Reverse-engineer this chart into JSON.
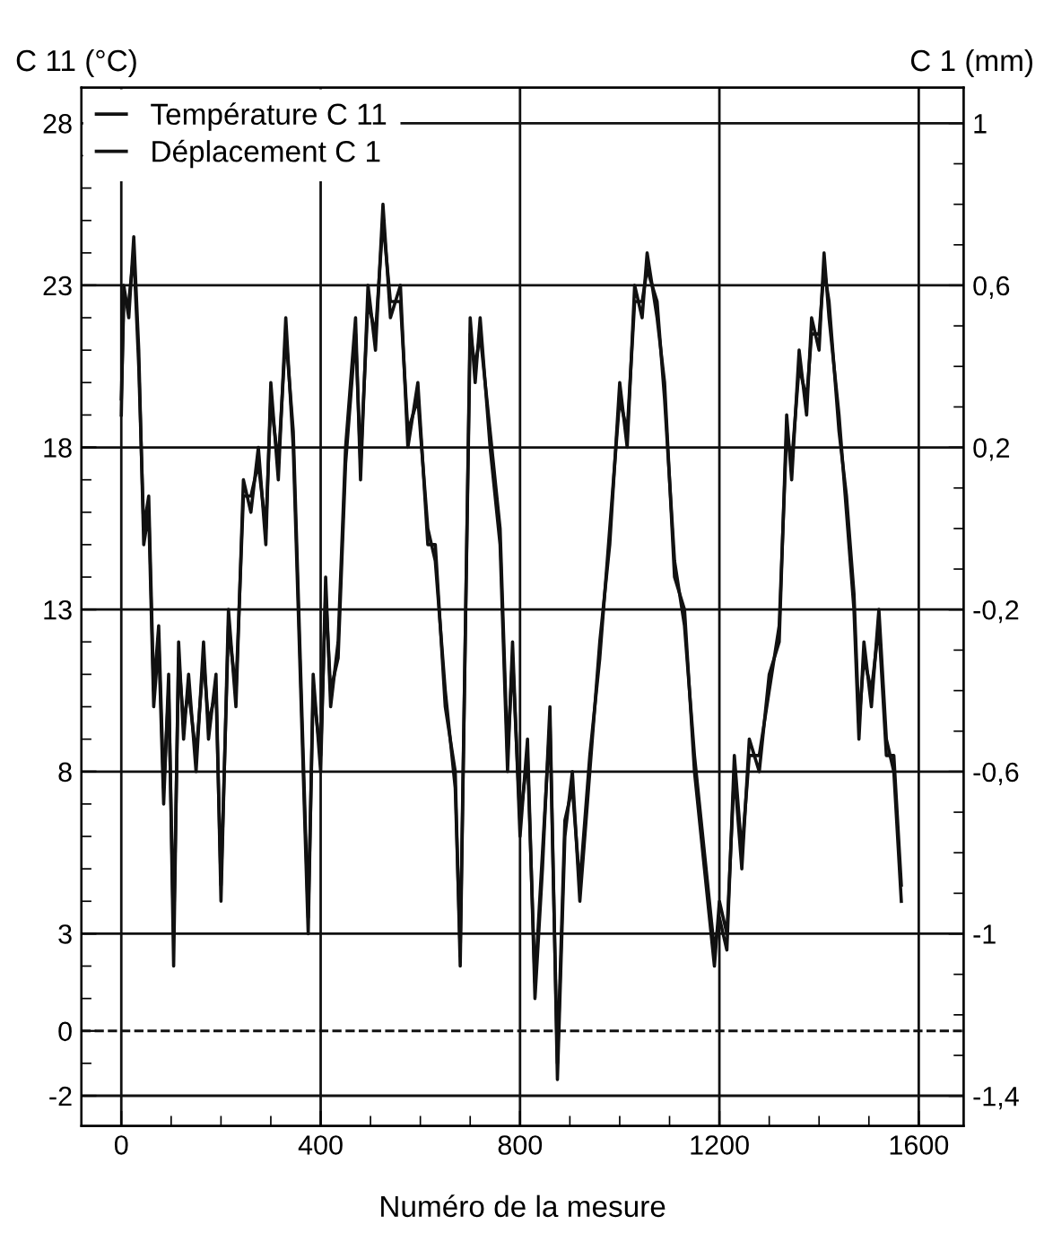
{
  "chart_data": {
    "type": "line",
    "xlabel": "Numéro de la mesure",
    "ylabel": "C 11 (°C)",
    "y2label": "C 1 (mm)",
    "x": [
      0,
      5,
      15,
      25,
      35,
      45,
      55,
      65,
      75,
      85,
      95,
      105,
      115,
      125,
      135,
      150,
      165,
      175,
      190,
      200,
      215,
      230,
      245,
      260,
      275,
      290,
      300,
      315,
      330,
      345,
      365,
      375,
      385,
      400,
      410,
      420,
      435,
      450,
      470,
      480,
      495,
      510,
      525,
      540,
      560,
      575,
      595,
      615,
      630,
      650,
      670,
      680,
      700,
      710,
      720,
      740,
      760,
      775,
      785,
      800,
      815,
      830,
      845,
      860,
      875,
      890,
      905,
      920,
      940,
      960,
      980,
      1000,
      1015,
      1030,
      1045,
      1055,
      1075,
      1090,
      1110,
      1130,
      1150,
      1170,
      1190,
      1200,
      1215,
      1230,
      1245,
      1260,
      1280,
      1300,
      1320,
      1335,
      1345,
      1360,
      1375,
      1385,
      1400,
      1410,
      1420,
      1440,
      1455,
      1470,
      1480,
      1490,
      1505,
      1520,
      1535,
      1550,
      1565
    ],
    "series": [
      {
        "name": "Température C 11",
        "color": "#111111",
        "values": [
          19,
          23,
          22,
          24.5,
          21,
          15,
          16,
          10,
          12,
          7,
          11,
          2,
          12,
          9,
          11,
          8,
          12,
          9,
          11,
          4,
          13,
          10,
          17,
          16,
          18,
          15,
          20,
          17,
          22,
          18,
          8,
          3,
          11,
          8,
          14,
          10,
          12,
          18,
          22,
          17,
          23,
          21,
          25.5,
          22,
          23,
          18,
          20,
          15,
          15,
          10,
          8,
          2,
          22,
          20,
          22,
          18,
          15,
          8,
          12,
          6,
          9,
          1,
          5,
          10,
          -1.5,
          6,
          8,
          4,
          8,
          12,
          15,
          20,
          18,
          23,
          22,
          24,
          22,
          20,
          14,
          13,
          8,
          5,
          2,
          4,
          3,
          8,
          5,
          9,
          8,
          11,
          12,
          19,
          17,
          21,
          19,
          22,
          21,
          24,
          22,
          19,
          16,
          13,
          9,
          12,
          10,
          13,
          9,
          8,
          4
        ]
      },
      {
        "name": "Déplacement C 1",
        "color": "#111111",
        "axis": "y2",
        "values": [
          0.32,
          0.56,
          0.56,
          0.68,
          0.4,
          0.0,
          0.08,
          -0.4,
          -0.24,
          -0.64,
          -0.4,
          -1.0,
          -0.32,
          -0.48,
          -0.4,
          -0.56,
          -0.32,
          -0.48,
          -0.4,
          -0.88,
          -0.24,
          -0.4,
          0.08,
          0.08,
          0.16,
          0.0,
          0.32,
          0.16,
          0.48,
          0.24,
          -0.56,
          -0.96,
          -0.4,
          -0.56,
          -0.16,
          -0.4,
          -0.32,
          0.16,
          0.48,
          0.16,
          0.56,
          0.48,
          0.76,
          0.56,
          0.56,
          0.24,
          0.32,
          0.0,
          -0.08,
          -0.4,
          -0.64,
          -1.04,
          0.48,
          0.4,
          0.48,
          0.24,
          0.0,
          -0.56,
          -0.32,
          -0.72,
          -0.56,
          -1.12,
          -0.8,
          -0.48,
          -1.32,
          -0.72,
          -0.64,
          -0.88,
          -0.56,
          -0.32,
          0.0,
          0.32,
          0.24,
          0.56,
          0.56,
          0.64,
          0.56,
          0.32,
          -0.08,
          -0.24,
          -0.56,
          -0.8,
          -1.04,
          -0.96,
          -1.04,
          -0.56,
          -0.8,
          -0.56,
          -0.56,
          -0.4,
          -0.24,
          0.24,
          0.16,
          0.4,
          0.32,
          0.48,
          0.48,
          0.64,
          0.56,
          0.24,
          0.08,
          -0.16,
          -0.48,
          -0.32,
          -0.4,
          -0.24,
          -0.56,
          -0.56,
          -0.88
        ]
      }
    ],
    "xlim": [
      -80,
      1690
    ],
    "ylim": [
      -2.93,
      29.1
    ],
    "y2lim": [
      -1.474,
      1.088
    ],
    "xticks": [
      0,
      {
        "value": 100,
        "label": null
      },
      {
        "value": 200,
        "label": null
      },
      {
        "value": 300,
        "label": null
      },
      400,
      {
        "value": 500,
        "label": null
      },
      {
        "value": 600,
        "label": null
      },
      {
        "value": 700,
        "label": null
      },
      800,
      {
        "value": 900,
        "label": null
      },
      {
        "value": 1000,
        "label": null
      },
      {
        "value": 1100,
        "label": null
      },
      1200,
      {
        "value": 1300,
        "label": null
      },
      {
        "value": 1400,
        "label": null
      },
      {
        "value": 1500,
        "label": null
      },
      1600
    ],
    "yticks": [
      -2,
      {
        "value": -1,
        "label": null
      },
      0,
      {
        "value": 1,
        "label": null
      },
      {
        "value": 2,
        "label": null
      },
      3,
      {
        "value": 4,
        "label": null
      },
      {
        "value": 5,
        "label": null
      },
      {
        "value": 6,
        "label": null
      },
      {
        "value": 7,
        "label": null
      },
      8,
      {
        "value": 9,
        "label": null
      },
      {
        "value": 10,
        "label": null
      },
      {
        "value": 11,
        "label": null
      },
      {
        "value": 12,
        "label": null
      },
      13,
      {
        "value": 14,
        "label": null
      },
      {
        "value": 15,
        "label": null
      },
      {
        "value": 16,
        "label": null
      },
      {
        "value": 17,
        "label": null
      },
      18,
      {
        "value": 19,
        "label": null
      },
      {
        "value": 20,
        "label": null
      },
      {
        "value": 21,
        "label": null
      },
      {
        "value": 22,
        "label": null
      },
      23,
      {
        "value": 24,
        "label": null
      },
      {
        "value": 25,
        "label": null
      },
      {
        "value": 26,
        "label": null
      },
      {
        "value": 27,
        "label": null
      },
      28
    ],
    "y2ticks": [
      {
        "value": -1.4,
        "label": "-1,4"
      },
      {
        "value": -1.3,
        "label": null
      },
      {
        "value": -1.2,
        "label": null
      },
      {
        "value": -1.1,
        "label": null
      },
      -1,
      {
        "value": -0.9,
        "label": null
      },
      {
        "value": -0.8,
        "label": null
      },
      {
        "value": -0.7,
        "label": null
      },
      {
        "value": -0.6,
        "label": "-0,6"
      },
      {
        "value": -0.5,
        "label": null
      },
      {
        "value": -0.4,
        "label": null
      },
      {
        "value": -0.3,
        "label": null
      },
      {
        "value": -0.2,
        "label": "-0,2"
      },
      {
        "value": -0.1,
        "label": null
      },
      {
        "value": 0,
        "label": null
      },
      {
        "value": 0.1,
        "label": null
      },
      {
        "value": 0.2,
        "label": "0,2"
      },
      {
        "value": 0.3,
        "label": null
      },
      {
        "value": 0.4,
        "label": null
      },
      {
        "value": 0.5,
        "label": null
      },
      {
        "value": 0.6,
        "label": "0,6"
      },
      {
        "value": 0.7,
        "label": null
      },
      {
        "value": 0.8,
        "label": null
      },
      {
        "value": 0.9,
        "label": null
      },
      1
    ],
    "ref_lines": [
      {
        "axis": "y",
        "value": 0,
        "line_style": "dashed",
        "color": "#111111"
      }
    ],
    "grid": true,
    "legend": "top left",
    "line_style": "solid",
    "marker": "none"
  }
}
